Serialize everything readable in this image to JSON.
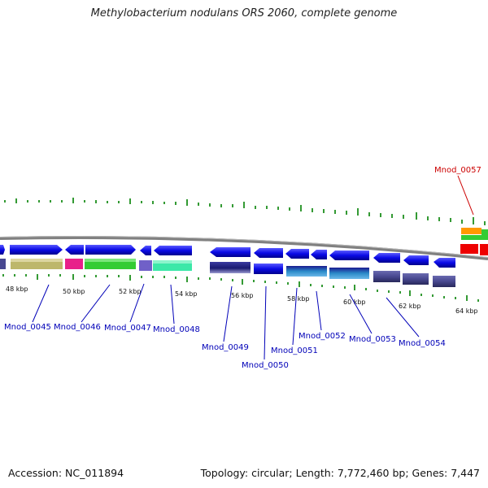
{
  "title": "Methylobacterium nodulans ORS 2060, complete genome",
  "footer": {
    "accession": "Accession: NC_011894",
    "summary": "Topology: circular; Length: 7,772,460 bp; Genes: 7,447"
  },
  "colors": {
    "background": "#ffffff",
    "backbone": "#808080",
    "gene_blue": "#0a0ae6",
    "gene_khaki": "#bdb76b",
    "gene_pink": "#e8208a",
    "gene_green": "#33cc33",
    "gene_aqua": "#3ce8a8",
    "gene_navy": "#1a1a70",
    "gene_slate": "#484890",
    "gene_red": "#ee0000",
    "gene_orange": "#ff9900",
    "label_default": "#0000b8",
    "label_highlight": "#cc0000",
    "tick": "#008000"
  },
  "kbp_labels": [
    "48 kbp",
    "50 kbp",
    "52 kbp",
    "54 kbp",
    "56 kbp",
    "58 kbp",
    "60 kbp",
    "62 kbp",
    "64 kbp"
  ],
  "gene_labels": [
    {
      "id": "Mnod_0045",
      "highlight": false
    },
    {
      "id": "Mnod_0046",
      "highlight": false
    },
    {
      "id": "Mnod_0047",
      "highlight": false
    },
    {
      "id": "Mnod_0048",
      "highlight": false
    },
    {
      "id": "Mnod_0049",
      "highlight": false
    },
    {
      "id": "Mnod_0050",
      "highlight": false
    },
    {
      "id": "Mnod_0051",
      "highlight": false
    },
    {
      "id": "Mnod_0052",
      "highlight": false
    },
    {
      "id": "Mnod_0053",
      "highlight": false
    },
    {
      "id": "Mnod_0054",
      "highlight": false
    },
    {
      "id": "Mnod_0057",
      "highlight": true
    }
  ]
}
